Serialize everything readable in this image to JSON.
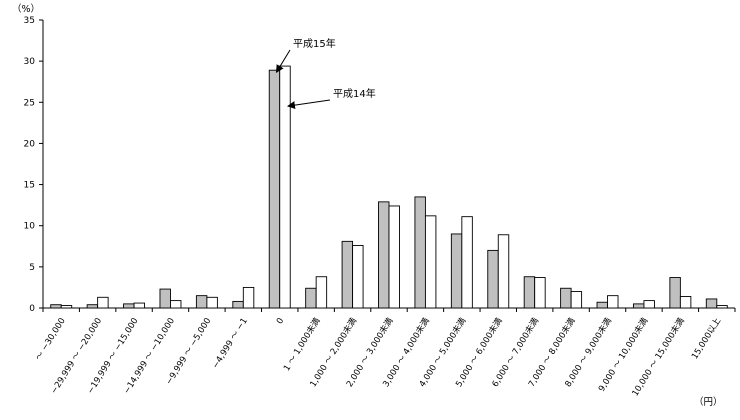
{
  "chart_data": {
    "type": "bar",
    "y_unit_label": "（%）",
    "x_unit_label": "（円）",
    "ylim": [
      0,
      35
    ],
    "yticks": [
      0,
      5,
      10,
      15,
      20,
      25,
      30,
      35
    ],
    "categories": [
      "～ −30,000",
      "−29,999 ～ −20,000",
      "−19,999 ～ −15,000",
      "−14,999 ～ −10,000",
      "−9,999 ～ −5,000",
      "−4,999 ～ −1",
      "0",
      "1 ～ 1,000未満",
      "1,000 ～ 2,000未満",
      "2,000 ～ 3,000未満",
      "3,000 ～ 4,000未満",
      "4,000 ～ 5,000未満",
      "5,000 ～ 6,000未満",
      "6,000 ～ 7,000未満",
      "7,000 ～ 8,000未満",
      "8,000 ～ 9,000未満",
      "9,000 ～ 10,000未満",
      "10,000 ～ 15,000未満",
      "15,000以上"
    ],
    "series": [
      {
        "name": "平成15年",
        "color": "#c0c0c0",
        "values": [
          0.4,
          0.4,
          0.5,
          2.3,
          1.5,
          0.8,
          28.9,
          2.4,
          8.1,
          12.9,
          13.5,
          9.0,
          7.0,
          3.8,
          2.4,
          0.7,
          0.5,
          3.7,
          1.1
        ]
      },
      {
        "name": "平成14年",
        "color": "#ffffff",
        "values": [
          0.3,
          1.3,
          0.6,
          0.9,
          1.3,
          2.5,
          29.4,
          3.8,
          7.6,
          12.4,
          11.2,
          11.1,
          8.9,
          3.7,
          2.0,
          1.5,
          0.9,
          1.4,
          0.3
        ]
      }
    ],
    "annotations": [
      {
        "text": "平成15年",
        "series": 0
      },
      {
        "text": "平成14年",
        "series": 1
      }
    ],
    "grid": false,
    "legend": "none"
  }
}
